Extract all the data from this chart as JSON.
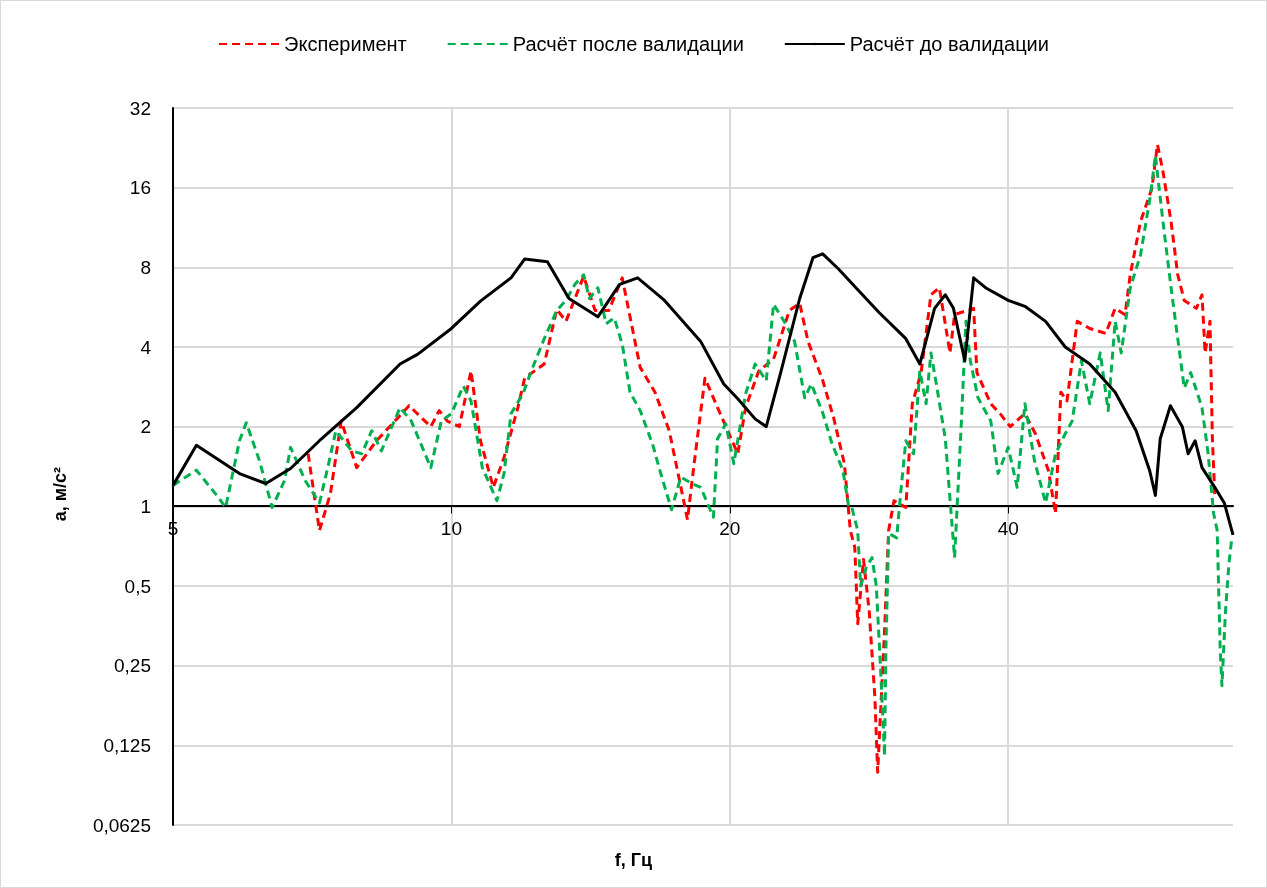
{
  "chart_data": {
    "type": "line",
    "xlabel": "f, Гц",
    "ylabel": "a, м/с²",
    "log": "xy",
    "grid": true,
    "legend": "top",
    "marker": "none",
    "xlim": [
      5,
      70
    ],
    "xticks": [
      5,
      10,
      20,
      40
    ],
    "ylim": [
      0.0625,
      32
    ],
    "yticks": [
      {
        "value": 0.0625,
        "label": "0,0625"
      },
      {
        "value": 0.125,
        "label": "0,125"
      },
      {
        "value": 0.25,
        "label": "0,25"
      },
      {
        "value": 0.5,
        "label": "0,5"
      },
      1,
      2,
      4,
      8,
      16,
      32
    ],
    "series": [
      {
        "name": "Эксперимент",
        "color": "#ff0000",
        "line_style": "dashed",
        "x": [
          7.0,
          7.2,
          7.4,
          7.6,
          7.9,
          8.3,
          9.0,
          9.5,
          9.7,
          9.9,
          10.2,
          10.5,
          10.75,
          11.1,
          11.4,
          11.8,
          12.0,
          12.6,
          13.0,
          13.3,
          13.9,
          14.3,
          14.8,
          15.3,
          16.0,
          16.6,
          17.2,
          17.8,
          18.0,
          18.3,
          18.8,
          19.4,
          20.4,
          20.8,
          21.5,
          22.3,
          23.2,
          23.8,
          24.3,
          25.2,
          25.9,
          26.6,
          27.0,
          27.3,
          27.5,
          27.9,
          28.3,
          28.7,
          28.9,
          29.4,
          29.7,
          30.1,
          31.0,
          31.5,
          32.2,
          33.0,
          33.7,
          34.6,
          35.0,
          36.7,
          37.0,
          38.3,
          39.2,
          40.2,
          41.7,
          42.8,
          44.2,
          45.0,
          45.6,
          46.3,
          47.5,
          49.0,
          51.0,
          52.2,
          53.5,
          54.2,
          55.6,
          57.2,
          58.0,
          58.8,
          60.0,
          61.0,
          62.0,
          63.9,
          64.8,
          65.3,
          66.1,
          66.5,
          66.9
        ],
        "values": [
          1.58,
          0.81,
          1.12,
          2.1,
          1.4,
          1.77,
          2.4,
          2.0,
          2.3,
          2.1,
          2.0,
          3.25,
          1.77,
          1.18,
          1.53,
          2.36,
          3.05,
          3.45,
          5.55,
          5.0,
          7.4,
          5.5,
          5.5,
          7.3,
          3.35,
          2.7,
          1.93,
          1.08,
          0.89,
          1.45,
          3.05,
          2.36,
          1.58,
          2.36,
          3.25,
          3.6,
          5.5,
          5.85,
          4.2,
          3.0,
          2.16,
          1.45,
          0.81,
          0.7,
          0.36,
          0.63,
          0.4,
          0.19,
          0.099,
          0.34,
          0.81,
          1.05,
          0.99,
          2.44,
          3.2,
          6.3,
          6.7,
          3.8,
          5.3,
          5.6,
          3.2,
          2.44,
          2.24,
          2.0,
          2.24,
          1.88,
          1.37,
          0.94,
          2.7,
          2.5,
          5.0,
          4.7,
          4.5,
          5.6,
          5.3,
          7.5,
          11.9,
          15.9,
          23.3,
          18.4,
          11.9,
          7.5,
          6.0,
          5.6,
          6.3,
          3.8,
          5.0,
          1.8,
          1.1
        ]
      },
      {
        "name": "Расчёт после валидации",
        "color": "#00b050",
        "line_style": "dashed",
        "x": [
          5.0,
          5.3,
          5.6,
          5.7,
          5.9,
          6.0,
          6.2,
          6.4,
          6.6,
          6.7,
          6.95,
          7.2,
          7.35,
          7.5,
          7.8,
          8.0,
          8.2,
          8.4,
          8.8,
          9.05,
          9.5,
          9.75,
          10.0,
          10.3,
          10.5,
          10.8,
          11.2,
          11.4,
          11.6,
          11.95,
          12.2,
          12.6,
          13.0,
          13.3,
          13.6,
          13.9,
          14.1,
          14.4,
          14.7,
          15.0,
          15.3,
          15.6,
          16.0,
          16.5,
          16.8,
          17.3,
          17.7,
          18.2,
          18.6,
          19.2,
          19.4,
          19.8,
          20.2,
          20.8,
          21.3,
          21.9,
          22.3,
          22.9,
          23.5,
          24.1,
          24.5,
          25.2,
          25.8,
          26.5,
          26.9,
          27.1,
          27.5,
          27.7,
          28.1,
          28.5,
          28.8,
          29.1,
          29.4,
          29.5,
          29.7,
          30.3,
          30.6,
          31.0,
          31.6,
          32.1,
          32.6,
          33.0,
          33.5,
          34.2,
          35.0,
          35.6,
          36.0,
          36.4,
          37.1,
          38.3,
          39.0,
          40.0,
          40.9,
          41.7,
          42.7,
          43.9,
          45.0,
          46.1,
          46.9,
          48.0,
          49.0,
          50.3,
          51.3,
          52.2,
          53.0,
          54.2,
          55.6,
          57.0,
          57.7,
          58.8,
          60.0,
          61.2,
          62.0,
          63.0,
          64.8,
          65.8,
          66.7,
          67.3,
          67.8,
          68.1,
          68.7,
          69.3,
          69.8
        ],
        "values": [
          1.2,
          1.37,
          1.08,
          0.99,
          1.77,
          2.07,
          1.49,
          0.99,
          1.25,
          1.67,
          1.25,
          1.03,
          1.4,
          1.93,
          1.62,
          1.58,
          1.93,
          1.62,
          2.36,
          2.1,
          1.4,
          2.1,
          2.24,
          2.85,
          2.5,
          1.4,
          1.05,
          1.33,
          2.24,
          2.66,
          3.25,
          4.3,
          5.5,
          6.0,
          6.9,
          7.5,
          6.1,
          6.7,
          4.9,
          5.15,
          4.1,
          2.7,
          2.3,
          1.72,
          1.37,
          0.97,
          1.29,
          1.22,
          1.18,
          0.91,
          1.8,
          2.05,
          1.45,
          2.66,
          3.45,
          2.98,
          5.8,
          5.0,
          4.2,
          2.57,
          2.9,
          2.26,
          1.72,
          1.37,
          0.99,
          0.99,
          0.81,
          0.5,
          0.59,
          0.64,
          0.5,
          0.25,
          0.114,
          0.29,
          0.79,
          0.76,
          1.12,
          1.77,
          1.58,
          3.25,
          2.44,
          3.8,
          2.8,
          1.8,
          0.64,
          2.1,
          5.0,
          3.55,
          2.57,
          2.1,
          1.33,
          1.67,
          1.18,
          2.44,
          1.49,
          1.03,
          1.58,
          1.88,
          2.1,
          3.55,
          2.44,
          3.8,
          2.3,
          5.0,
          3.8,
          6.7,
          8.9,
          15,
          21.2,
          11.9,
          6.7,
          3.95,
          2.8,
          3.2,
          2.36,
          1.58,
          0.94,
          0.81,
          0.29,
          0.21,
          0.4,
          0.61,
          0.76
        ]
      },
      {
        "name": "Расчёт до валидации",
        "color": "#000000",
        "line_style": "solid",
        "x": [
          5.0,
          5.3,
          5.9,
          6.3,
          6.7,
          7.2,
          7.9,
          8.8,
          9.2,
          10.0,
          10.75,
          11.6,
          12.0,
          12.7,
          13.4,
          14.4,
          15.2,
          15.9,
          17.0,
          18.6,
          19.7,
          20.4,
          21.3,
          21.9,
          22.7,
          23.8,
          24.6,
          25.2,
          26.2,
          27.6,
          29.0,
          31.0,
          32.1,
          33.3,
          34.2,
          34.9,
          35.9,
          36.7,
          37.8,
          40.0,
          41.7,
          43.9,
          46.1,
          49.0,
          52.2,
          55.0,
          56.9,
          57.7,
          58.4,
          59.9,
          61.7,
          62.6,
          63.7,
          64.8,
          66.9,
          68.5,
          70.0
        ],
        "values": [
          1.2,
          1.7,
          1.33,
          1.22,
          1.39,
          1.77,
          2.36,
          3.45,
          3.76,
          4.7,
          5.96,
          7.3,
          8.6,
          8.4,
          6.1,
          5.2,
          6.9,
          7.3,
          6.0,
          4.2,
          2.9,
          2.55,
          2.14,
          2.0,
          3.2,
          6.1,
          8.7,
          9.0,
          7.9,
          6.5,
          5.4,
          4.3,
          3.45,
          5.6,
          6.3,
          5.6,
          3.55,
          7.3,
          6.7,
          6.0,
          5.7,
          5.0,
          4.0,
          3.45,
          2.7,
          1.93,
          1.36,
          1.1,
          1.8,
          2.4,
          2.0,
          1.58,
          1.77,
          1.4,
          1.18,
          1.03,
          0.78
        ]
      }
    ]
  }
}
